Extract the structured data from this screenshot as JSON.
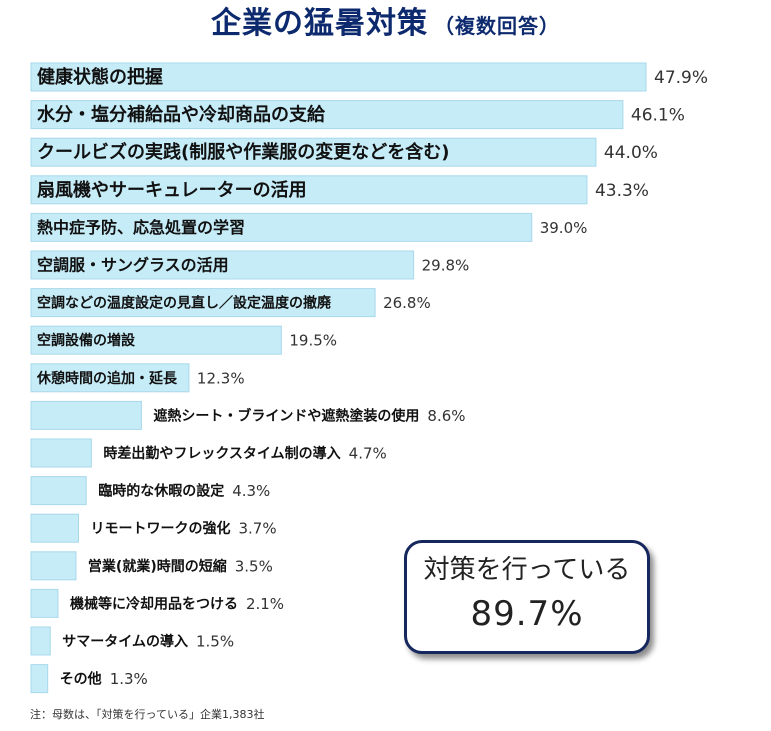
{
  "header": {
    "title": "企業の猛暑対策",
    "subtitle": "（複数回答）"
  },
  "chart_data": {
    "type": "bar",
    "orientation": "horizontal",
    "title": "企業の猛暑対策（複数回答）",
    "unit": "%",
    "bar_color": "#c6ecf8",
    "bar_edge_color": "#a8d8ea",
    "xlim": [
      0,
      50
    ],
    "categories": [
      "健康状態の把握",
      "水分・塩分補給品や冷却商品の支給",
      "クールビズの実践(制服や作業服の変更などを含む)",
      "扇風機やサーキュレーターの活用",
      "熱中症予防、応急処置の学習",
      "空調服・サングラスの活用",
      "空調などの温度設定の見直し／設定温度の撤廃",
      "空調設備の増設",
      "休憩時間の追加・延長",
      "遮熱シート・ブラインドや遮熱塗装の使用",
      "時差出勤やフレックスタイム制の導入",
      "臨時的な休暇の設定",
      "リモートワークの強化",
      "営業(就業)時間の短縮",
      "機械等に冷却用品をつける",
      "サマータイムの導入",
      "その他"
    ],
    "values": [
      47.9,
      46.1,
      44.0,
      43.3,
      39.0,
      29.8,
      26.8,
      19.5,
      12.3,
      8.6,
      4.7,
      4.3,
      3.7,
      3.5,
      2.1,
      1.5,
      1.3
    ],
    "value_labels": [
      "47.9%",
      "46.1%",
      "44.0%",
      "43.3%",
      "39.0%",
      "29.8%",
      "26.8%",
      "19.5%",
      "12.3%",
      "8.6%",
      "4.7%",
      "4.3%",
      "3.7%",
      "3.5%",
      "2.1%",
      "1.5%",
      "1.3%"
    ]
  },
  "callout": {
    "line1": "対策を行っている",
    "line2": "89.7%"
  },
  "footnote": "注：母数は、「対策を行っている」企業1,383社"
}
